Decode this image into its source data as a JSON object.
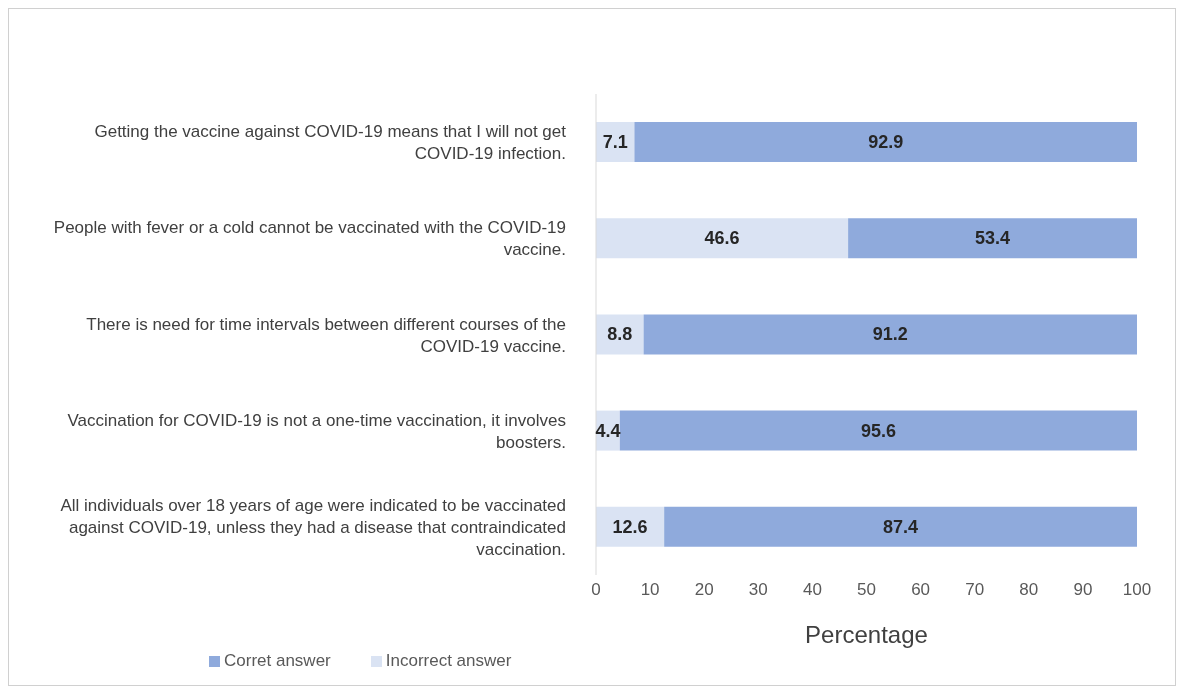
{
  "chart_data": {
    "type": "bar",
    "orientation": "horizontal",
    "stacked": true,
    "xlabel": "Percentage",
    "categories": [
      "Getting the vaccine against COVID-19 means that I will not get COVID-19 infection.",
      "People with fever or a cold cannot be vaccinated with the COVID-19 vaccine.",
      "There is  need for time intervals between different courses of the COVID-19 vaccine.",
      "Vaccination for COVID-19 is not a one-time vaccination, it involves boosters.",
      "All individuals over 18 years of age were indicated to be vaccinated against COVID-19, unless they had a disease that contraindicated vaccination."
    ],
    "series": [
      {
        "name": "Incorrect answer",
        "color": "#dae3f3",
        "values": [
          7.1,
          46.6,
          8.8,
          4.4,
          12.6
        ]
      },
      {
        "name": "Corret answer",
        "color": "#8faadc",
        "values": [
          92.9,
          53.4,
          91.2,
          95.6,
          87.4
        ]
      }
    ],
    "xlim": [
      0,
      100
    ],
    "xticks": [
      0,
      10,
      20,
      30,
      40,
      50,
      60,
      70,
      80,
      90,
      100
    ],
    "data_labels": true,
    "grid": false,
    "legend": "bottom left"
  }
}
